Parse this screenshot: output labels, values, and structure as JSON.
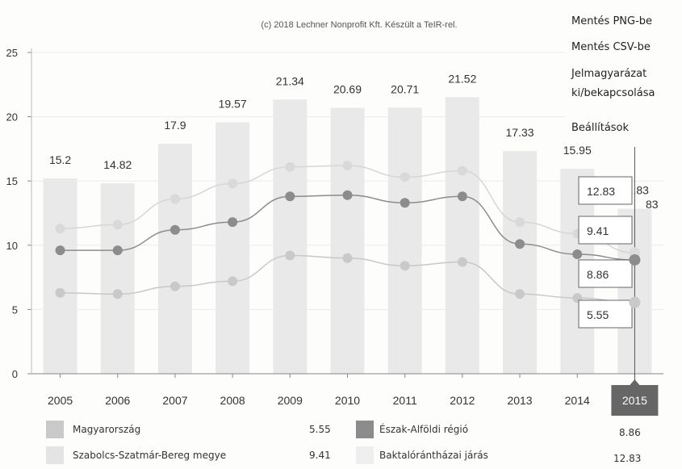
{
  "copyright": "(c) 2018 Lechner Nonprofit Kft. Készült a TeIR-rel.",
  "menu": {
    "items": [
      {
        "label": "Mentés PNG-be"
      },
      {
        "label": "Mentés CSV-be"
      },
      {
        "label": "Jelmagyarázat\nki/bekapcsolása"
      },
      {
        "label": "Beállítások"
      }
    ]
  },
  "colors": {
    "bar": "#e9e9e9",
    "region_line": "#8c8c8c",
    "county_line": "#d6d6d6",
    "district_line": "#c8c8c8",
    "highlight_tab": "#666666"
  },
  "chart_data": {
    "type": "bar",
    "categories": [
      "2005",
      "2006",
      "2007",
      "2008",
      "2009",
      "2010",
      "2011",
      "2012",
      "2013",
      "2014",
      "2015"
    ],
    "ylim": [
      0,
      25
    ],
    "yticks": [
      0,
      5,
      10,
      15,
      20,
      25
    ],
    "highlighted_category": "2015",
    "series": [
      {
        "name": "Baktalórántházai járás",
        "type": "bar",
        "values": [
          15.2,
          14.82,
          17.9,
          19.57,
          21.34,
          20.69,
          20.71,
          21.52,
          17.33,
          15.95,
          12.83
        ],
        "data_labels": [
          "15.2",
          "14.82",
          "17.9",
          "19.57",
          "21.34",
          "20.69",
          "20.71",
          "21.52",
          "17.33",
          "15.95",
          "12.83"
        ]
      },
      {
        "name": "Szabolcs-Szatmár-Bereg megye",
        "type": "line",
        "values": [
          11.3,
          11.6,
          13.6,
          14.8,
          16.1,
          16.2,
          15.3,
          15.8,
          11.8,
          10.9,
          9.41
        ]
      },
      {
        "name": "Észak-Alföldi régió",
        "type": "line",
        "values": [
          9.6,
          9.6,
          11.2,
          11.8,
          13.8,
          13.9,
          13.3,
          13.8,
          10.1,
          9.3,
          8.86
        ]
      },
      {
        "name": "Magyarország",
        "type": "line",
        "values": [
          6.3,
          6.2,
          6.8,
          7.2,
          9.2,
          9.0,
          8.4,
          8.7,
          6.2,
          5.9,
          5.55
        ]
      }
    ],
    "tooltips": [
      "12.83",
      "9.41",
      "8.86",
      "5.55"
    ],
    "partial_label": "83"
  },
  "legend": [
    {
      "label": "Magyarország",
      "value": "5.55"
    },
    {
      "label": "Észak-Alföldi régió",
      "value": "8.86"
    },
    {
      "label": "Szabolcs-Szatmár-Bereg megye",
      "value": "9.41"
    },
    {
      "label": "Baktalórántházai járás",
      "value": "12.83"
    }
  ]
}
